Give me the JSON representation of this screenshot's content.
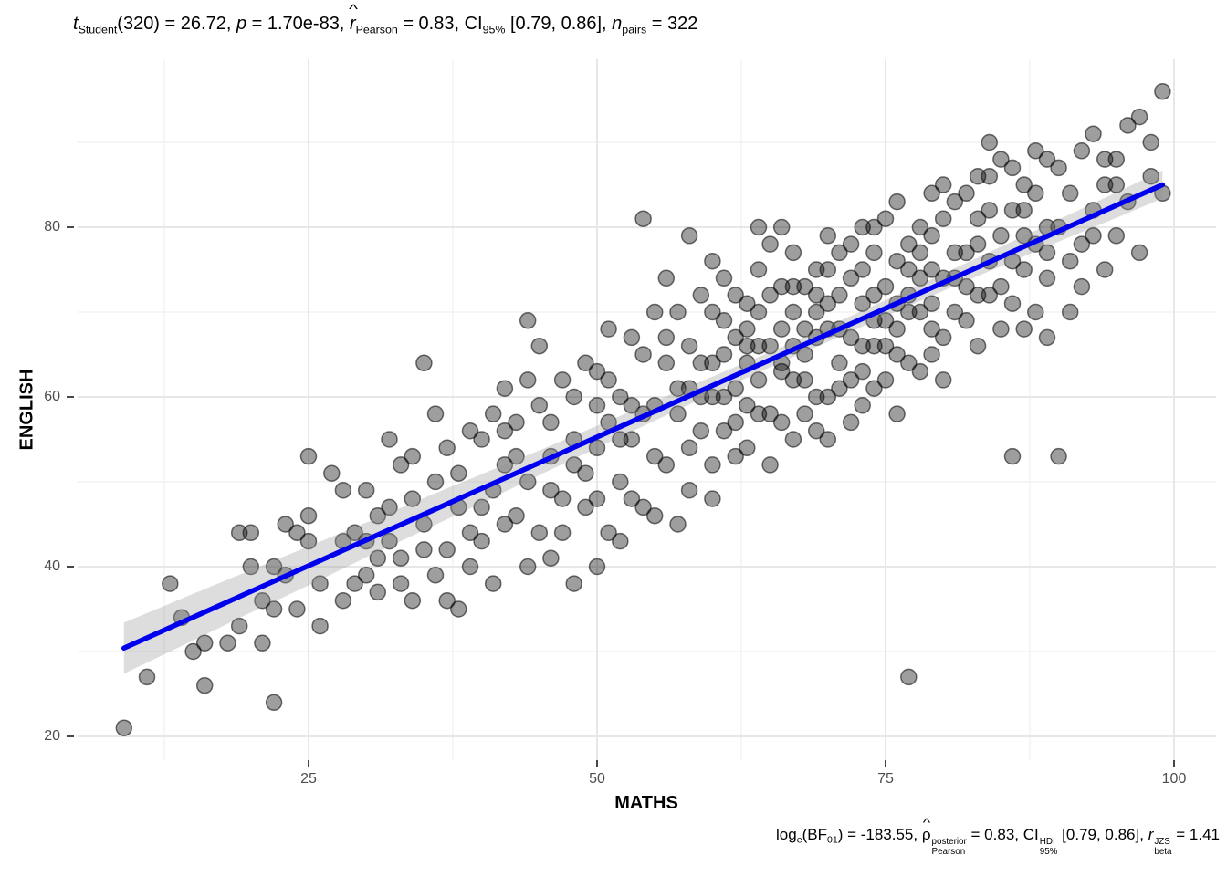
{
  "title": {
    "segments": [
      {
        "t": "t",
        "it": true
      },
      {
        "sub": "Student"
      },
      {
        "t": "(320) = 26.72, "
      },
      {
        "t": "p",
        "it": true
      },
      {
        "t": " = 1.70e-83, "
      },
      {
        "t": "r",
        "it": true,
        "hat": true
      },
      {
        "sub": "Pearson"
      },
      {
        "t": " = 0.83, CI"
      },
      {
        "sub": "95%"
      },
      {
        "t": " [0.79, 0.86], "
      },
      {
        "t": "n",
        "it": true
      },
      {
        "sub": "pairs"
      },
      {
        "t": " = 322"
      }
    ]
  },
  "caption": {
    "segments": [
      {
        "t": "log"
      },
      {
        "sub": "e"
      },
      {
        "t": "(BF"
      },
      {
        "sub": "01"
      },
      {
        "t": ") = -183.55, "
      },
      {
        "t": "ρ",
        "hat": true
      },
      {
        "sup": "posterior",
        "sub": "Pearson"
      },
      {
        "t": " = 0.83, CI"
      },
      {
        "sup": "HDI",
        "sub": "95%"
      },
      {
        "t": " [0.79, 0.86], "
      },
      {
        "t": "r",
        "it": true
      },
      {
        "sup": "JZS",
        "sub": "beta"
      },
      {
        "t": " = 1.41"
      }
    ]
  },
  "stats": {
    "t": 26.72,
    "df": 320,
    "p": "1.70e-83",
    "r_pearson": 0.83,
    "ci_95": [
      0.79,
      0.86
    ],
    "n_pairs": 322,
    "log_e_BF01": -183.55,
    "rho_posterior": 0.83,
    "ci_hdi_95": [
      0.79,
      0.86
    ],
    "r_beta_jzs": 1.41
  },
  "chart_data": {
    "type": "scatter",
    "title": "t_Student(320) = 26.72, p = 1.70e-83, r_Pearson = 0.83, CI_95% [0.79, 0.86], n_pairs = 322",
    "xlabel": "MATHS",
    "ylabel": "ENGLISH",
    "xlim": [
      5,
      103.6
    ],
    "ylim": [
      17.2,
      99.8
    ],
    "x_ticks": [
      25,
      50,
      75,
      100
    ],
    "y_ticks": [
      20,
      40,
      60,
      80
    ],
    "grid": "on",
    "legend": "none",
    "regression": {
      "slope": 0.607,
      "intercept": 24.94,
      "x_start": 9,
      "x_end": 99,
      "y_start": 30.4,
      "y_end": 85.0
    },
    "ci_band": [
      [
        9,
        27.4,
        33.4
      ],
      [
        15,
        31.3,
        36.8
      ],
      [
        20,
        34.6,
        39.6
      ],
      [
        25,
        37.8,
        42.4
      ],
      [
        30,
        41.1,
        45.2
      ],
      [
        35,
        44.3,
        48.1
      ],
      [
        40,
        47.5,
        50.9
      ],
      [
        45,
        50.8,
        53.7
      ],
      [
        50,
        54.0,
        56.6
      ],
      [
        55,
        57.2,
        59.5
      ],
      [
        60,
        60.4,
        62.4
      ],
      [
        65,
        63.5,
        65.3
      ],
      [
        70,
        66.5,
        68.3
      ],
      [
        75,
        69.5,
        71.4
      ],
      [
        80,
        72.5,
        74.5
      ],
      [
        85,
        75.4,
        77.7
      ],
      [
        90,
        78.3,
        80.9
      ],
      [
        95,
        81.1,
        84.1
      ],
      [
        99,
        83.4,
        86.7
      ]
    ],
    "points": [
      [
        9,
        21
      ],
      [
        11,
        27
      ],
      [
        16,
        26
      ],
      [
        16,
        31
      ],
      [
        18,
        31
      ],
      [
        19,
        33
      ],
      [
        19,
        44
      ],
      [
        14,
        34
      ],
      [
        15,
        30
      ],
      [
        13,
        38
      ],
      [
        21,
        31
      ],
      [
        22,
        24
      ],
      [
        20,
        40
      ],
      [
        20,
        44
      ],
      [
        22,
        40
      ],
      [
        24,
        35
      ],
      [
        25,
        53
      ],
      [
        25,
        46
      ],
      [
        26,
        38
      ],
      [
        23,
        39
      ],
      [
        28,
        49
      ],
      [
        28,
        36
      ],
      [
        29,
        44
      ],
      [
        26,
        33
      ],
      [
        24,
        44
      ],
      [
        22,
        35
      ],
      [
        27,
        51
      ],
      [
        29,
        38
      ],
      [
        25,
        43
      ],
      [
        23,
        45
      ],
      [
        21,
        36
      ],
      [
        28,
        43
      ],
      [
        30,
        39
      ],
      [
        31,
        46
      ],
      [
        31,
        37
      ],
      [
        32,
        43
      ],
      [
        33,
        52
      ],
      [
        33,
        41
      ],
      [
        34,
        36
      ],
      [
        34,
        48
      ],
      [
        35,
        64
      ],
      [
        35,
        45
      ],
      [
        36,
        39
      ],
      [
        36,
        50
      ],
      [
        37,
        54
      ],
      [
        37,
        42
      ],
      [
        38,
        35
      ],
      [
        38,
        47
      ],
      [
        39,
        56
      ],
      [
        39,
        44
      ],
      [
        30,
        49
      ],
      [
        31,
        41
      ],
      [
        32,
        55
      ],
      [
        33,
        38
      ],
      [
        34,
        53
      ],
      [
        35,
        42
      ],
      [
        36,
        58
      ],
      [
        37,
        36
      ],
      [
        38,
        51
      ],
      [
        39,
        40
      ],
      [
        32,
        47
      ],
      [
        30,
        43
      ],
      [
        40,
        43
      ],
      [
        40,
        55
      ],
      [
        41,
        49
      ],
      [
        41,
        38
      ],
      [
        42,
        52
      ],
      [
        42,
        61
      ],
      [
        43,
        46
      ],
      [
        43,
        57
      ],
      [
        44,
        69
      ],
      [
        44,
        50
      ],
      [
        45,
        44
      ],
      [
        45,
        59
      ],
      [
        46,
        53
      ],
      [
        46,
        41
      ],
      [
        47,
        62
      ],
      [
        47,
        48
      ],
      [
        48,
        55
      ],
      [
        48,
        38
      ],
      [
        49,
        64
      ],
      [
        49,
        51
      ],
      [
        40,
        47
      ],
      [
        41,
        58
      ],
      [
        42,
        45
      ],
      [
        43,
        53
      ],
      [
        44,
        40
      ],
      [
        45,
        66
      ],
      [
        46,
        57
      ],
      [
        47,
        44
      ],
      [
        48,
        60
      ],
      [
        49,
        47
      ],
      [
        42,
        56
      ],
      [
        44,
        62
      ],
      [
        46,
        49
      ],
      [
        48,
        52
      ],
      [
        50,
        54
      ],
      [
        50,
        48
      ],
      [
        50,
        63
      ],
      [
        51,
        57
      ],
      [
        51,
        44
      ],
      [
        52,
        60
      ],
      [
        52,
        50
      ],
      [
        53,
        67
      ],
      [
        53,
        55
      ],
      [
        54,
        81
      ],
      [
        54,
        47
      ],
      [
        55,
        59
      ],
      [
        55,
        70
      ],
      [
        56,
        52
      ],
      [
        56,
        64
      ],
      [
        57,
        58
      ],
      [
        57,
        45
      ],
      [
        58,
        66
      ],
      [
        58,
        54
      ],
      [
        59,
        72
      ],
      [
        59,
        60
      ],
      [
        50,
        40
      ],
      [
        51,
        62
      ],
      [
        52,
        55
      ],
      [
        53,
        48
      ],
      [
        54,
        65
      ],
      [
        55,
        53
      ],
      [
        56,
        74
      ],
      [
        57,
        61
      ],
      [
        58,
        49
      ],
      [
        59,
        56
      ],
      [
        51,
        68
      ],
      [
        53,
        59
      ],
      [
        55,
        46
      ],
      [
        57,
        70
      ],
      [
        59,
        64
      ],
      [
        52,
        43
      ],
      [
        54,
        58
      ],
      [
        56,
        67
      ],
      [
        58,
        61
      ],
      [
        50,
        59
      ],
      [
        58,
        79
      ],
      [
        60,
        60
      ],
      [
        60,
        70
      ],
      [
        60,
        52
      ],
      [
        61,
        65
      ],
      [
        61,
        56
      ],
      [
        62,
        72
      ],
      [
        62,
        61
      ],
      [
        63,
        54
      ],
      [
        63,
        68
      ],
      [
        64,
        75
      ],
      [
        64,
        62
      ],
      [
        65,
        58
      ],
      [
        65,
        66
      ],
      [
        66,
        80
      ],
      [
        66,
        63
      ],
      [
        67,
        70
      ],
      [
        67,
        55
      ],
      [
        68,
        65
      ],
      [
        68,
        73
      ],
      [
        69,
        60
      ],
      [
        69,
        67
      ],
      [
        60,
        48
      ],
      [
        61,
        74
      ],
      [
        62,
        57
      ],
      [
        63,
        64
      ],
      [
        64,
        70
      ],
      [
        65,
        52
      ],
      [
        66,
        68
      ],
      [
        67,
        77
      ],
      [
        68,
        58
      ],
      [
        69,
        72
      ],
      [
        60,
        64
      ],
      [
        61,
        69
      ],
      [
        62,
        53
      ],
      [
        63,
        71
      ],
      [
        64,
        66
      ],
      [
        65,
        78
      ],
      [
        66,
        57
      ],
      [
        67,
        62
      ],
      [
        68,
        68
      ],
      [
        69,
        75
      ],
      [
        61,
        60
      ],
      [
        63,
        66
      ],
      [
        65,
        72
      ],
      [
        67,
        66
      ],
      [
        69,
        56
      ],
      [
        62,
        67
      ],
      [
        64,
        58
      ],
      [
        66,
        73
      ],
      [
        68,
        62
      ],
      [
        60,
        76
      ],
      [
        63,
        59
      ],
      [
        66,
        64
      ],
      [
        69,
        70
      ],
      [
        64,
        80
      ],
      [
        67,
        73
      ],
      [
        70,
        68
      ],
      [
        70,
        75
      ],
      [
        70,
        60
      ],
      [
        71,
        72
      ],
      [
        71,
        64
      ],
      [
        72,
        78
      ],
      [
        72,
        67
      ],
      [
        73,
        59
      ],
      [
        73,
        71
      ],
      [
        74,
        80
      ],
      [
        74,
        66
      ],
      [
        75,
        73
      ],
      [
        75,
        62
      ],
      [
        76,
        76
      ],
      [
        76,
        68
      ],
      [
        77,
        27
      ],
      [
        77,
        70
      ],
      [
        78,
        74
      ],
      [
        78,
        63
      ],
      [
        79,
        79
      ],
      [
        79,
        68
      ],
      [
        70,
        55
      ],
      [
        71,
        77
      ],
      [
        72,
        62
      ],
      [
        73,
        75
      ],
      [
        74,
        69
      ],
      [
        75,
        81
      ],
      [
        76,
        58
      ],
      [
        77,
        72
      ],
      [
        78,
        80
      ],
      [
        79,
        65
      ],
      [
        70,
        71
      ],
      [
        71,
        61
      ],
      [
        72,
        74
      ],
      [
        73,
        66
      ],
      [
        74,
        77
      ],
      [
        75,
        69
      ],
      [
        76,
        83
      ],
      [
        77,
        64
      ],
      [
        78,
        70
      ],
      [
        79,
        75
      ],
      [
        71,
        68
      ],
      [
        73,
        80
      ],
      [
        75,
        66
      ],
      [
        77,
        78
      ],
      [
        79,
        71
      ],
      [
        72,
        57
      ],
      [
        74,
        72
      ],
      [
        76,
        65
      ],
      [
        78,
        77
      ],
      [
        70,
        79
      ],
      [
        73,
        63
      ],
      [
        76,
        71
      ],
      [
        79,
        84
      ],
      [
        74,
        61
      ],
      [
        77,
        75
      ],
      [
        80,
        74
      ],
      [
        80,
        81
      ],
      [
        80,
        67
      ],
      [
        81,
        77
      ],
      [
        81,
        70
      ],
      [
        82,
        84
      ],
      [
        82,
        73
      ],
      [
        83,
        66
      ],
      [
        83,
        78
      ],
      [
        84,
        86
      ],
      [
        84,
        72
      ],
      [
        85,
        79
      ],
      [
        85,
        68
      ],
      [
        86,
        53
      ],
      [
        86,
        82
      ],
      [
        87,
        75
      ],
      [
        87,
        85
      ],
      [
        88,
        70
      ],
      [
        88,
        78
      ],
      [
        89,
        88
      ],
      [
        89,
        74
      ],
      [
        80,
        62
      ],
      [
        81,
        83
      ],
      [
        82,
        69
      ],
      [
        83,
        81
      ],
      [
        84,
        76
      ],
      [
        85,
        88
      ],
      [
        86,
        71
      ],
      [
        87,
        79
      ],
      [
        88,
        84
      ],
      [
        89,
        67
      ],
      [
        81,
        74
      ],
      [
        83,
        86
      ],
      [
        85,
        73
      ],
      [
        87,
        68
      ],
      [
        89,
        80
      ],
      [
        82,
        77
      ],
      [
        84,
        82
      ],
      [
        86,
        76
      ],
      [
        88,
        89
      ],
      [
        80,
        85
      ],
      [
        83,
        72
      ],
      [
        86,
        87
      ],
      [
        89,
        77
      ],
      [
        84,
        90
      ],
      [
        87,
        82
      ],
      [
        90,
        53
      ],
      [
        90,
        80
      ],
      [
        90,
        87
      ],
      [
        91,
        76
      ],
      [
        91,
        84
      ],
      [
        92,
        89
      ],
      [
        92,
        78
      ],
      [
        93,
        82
      ],
      [
        93,
        91
      ],
      [
        94,
        75
      ],
      [
        94,
        85
      ],
      [
        95,
        88
      ],
      [
        95,
        79
      ],
      [
        96,
        83
      ],
      [
        96,
        92
      ],
      [
        97,
        93
      ],
      [
        97,
        77
      ],
      [
        98,
        86
      ],
      [
        98,
        90
      ],
      [
        99,
        96
      ],
      [
        99,
        84
      ],
      [
        91,
        70
      ],
      [
        93,
        79
      ],
      [
        95,
        85
      ],
      [
        92,
        73
      ],
      [
        94,
        88
      ]
    ],
    "colors": {
      "line": "#0000EE",
      "band": "rgba(150,150,150,0.32)",
      "point_fill": "rgba(0,0,0,0.38)",
      "point_stroke": "rgba(0,0,0,0.55)",
      "grid_major": "#E7E7E7",
      "grid_minor": "#F2F2F2",
      "tick": "#333333",
      "tick_label": "#4d4d4d"
    }
  }
}
